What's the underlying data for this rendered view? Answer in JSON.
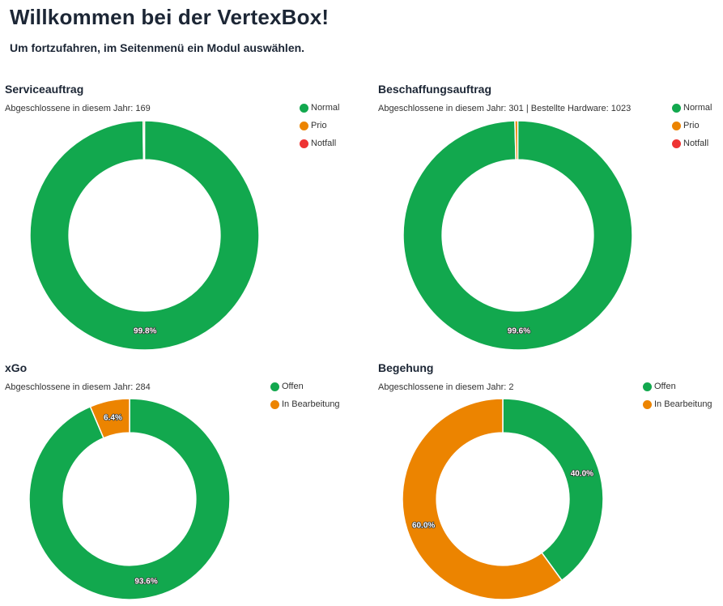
{
  "header": {
    "title": "Willkommen bei der VertexBox!",
    "subtitle": "Um fortzufahren, im Seitenmenü ein Modul auswählen."
  },
  "colors": {
    "green": "#12a84e",
    "orange": "#ec8400",
    "red": "#ee3333"
  },
  "chart_data": [
    {
      "type": "pie",
      "title": "Serviceauftrag",
      "subtitle": "Abgeschlossene in diesem Jahr: 169",
      "categories": [
        "Normal",
        "Prio",
        "Notfall"
      ],
      "values": [
        99.8,
        0.2,
        0.0
      ],
      "labels": [
        "99.8%",
        "",
        ""
      ],
      "colors": [
        "#12a84e",
        "#ec8400",
        "#ee3333"
      ],
      "legend_position": "top-right"
    },
    {
      "type": "pie",
      "title": "Beschaffungsauftrag",
      "subtitle": "Abgeschlossene in diesem Jahr: 301 | Bestellte Hardware: 1023",
      "categories": [
        "Normal",
        "Prio",
        "Notfall"
      ],
      "values": [
        99.6,
        0.4,
        0.0
      ],
      "labels": [
        "99.6%",
        "",
        ""
      ],
      "colors": [
        "#12a84e",
        "#ec8400",
        "#ee3333"
      ],
      "legend_position": "top-right"
    },
    {
      "type": "pie",
      "title": "xGo",
      "subtitle": "Abgeschlossene in diesem Jahr: 284",
      "categories": [
        "Offen",
        "In Bearbeitung"
      ],
      "values": [
        93.6,
        6.4
      ],
      "labels": [
        "93.6%",
        "6.4%"
      ],
      "colors": [
        "#12a84e",
        "#ec8400"
      ],
      "legend_position": "top-right"
    },
    {
      "type": "pie",
      "title": "Begehung",
      "subtitle": "Abgeschlossene in diesem Jahr: 2",
      "categories": [
        "Offen",
        "In Bearbeitung"
      ],
      "values": [
        40.0,
        60.0
      ],
      "labels": [
        "40.0%",
        "60.0%"
      ],
      "colors": [
        "#12a84e",
        "#ec8400"
      ],
      "legend_position": "top-right"
    }
  ]
}
